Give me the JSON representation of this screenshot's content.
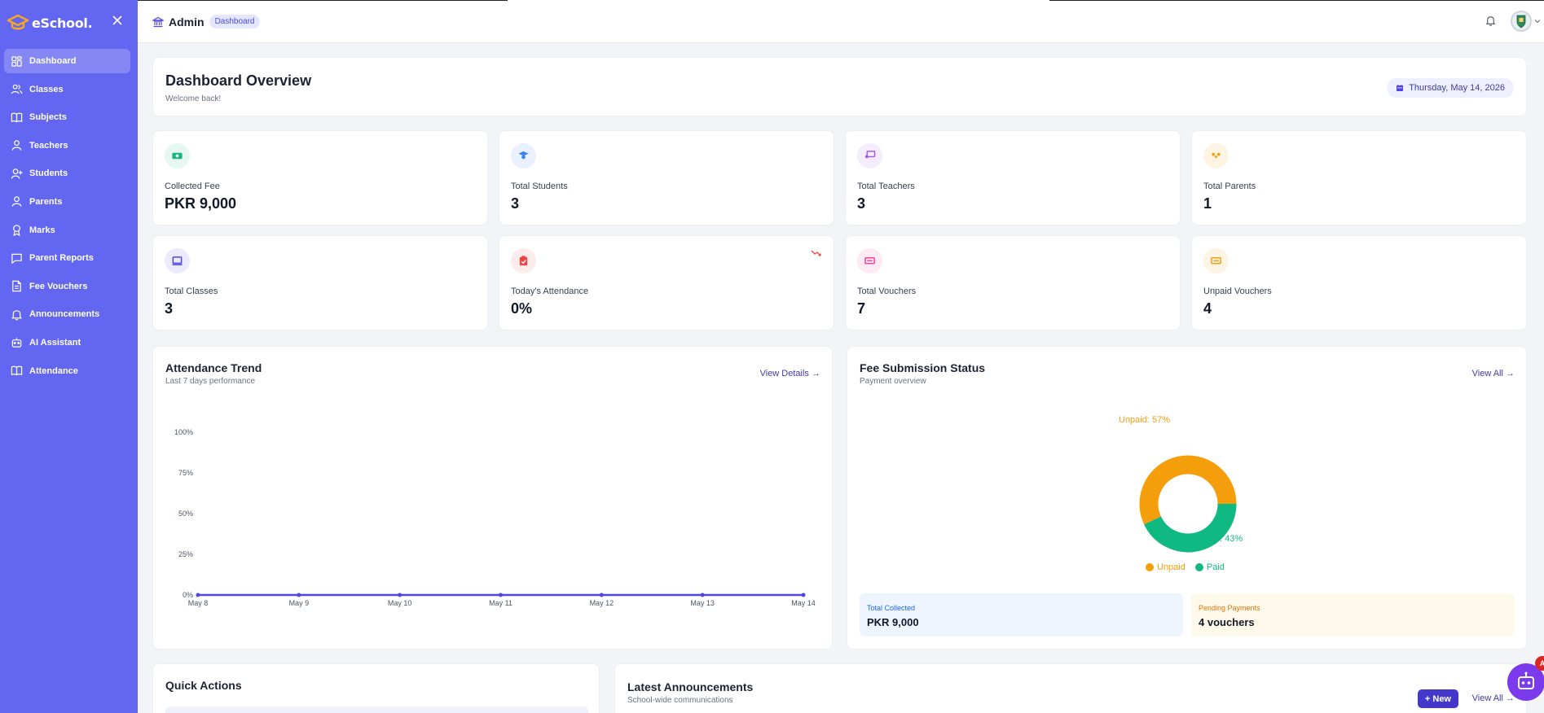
{
  "brand": {
    "name": "eSchool."
  },
  "sidebar": {
    "items": [
      {
        "label": "Dashboard",
        "icon": "dashboard-icon",
        "active": true
      },
      {
        "label": "Classes",
        "icon": "users-icon"
      },
      {
        "label": "Subjects",
        "icon": "book-icon"
      },
      {
        "label": "Teachers",
        "icon": "user-icon"
      },
      {
        "label": "Students",
        "icon": "user-plus-icon"
      },
      {
        "label": "Parents",
        "icon": "user-icon"
      },
      {
        "label": "Marks",
        "icon": "award-icon"
      },
      {
        "label": "Parent Reports",
        "icon": "message-icon"
      },
      {
        "label": "Fee Vouchers",
        "icon": "file-icon"
      },
      {
        "label": "Announcements",
        "icon": "bell-icon"
      },
      {
        "label": "AI Assistant",
        "icon": "robot-icon"
      },
      {
        "label": "Attendance",
        "icon": "book-icon"
      }
    ]
  },
  "topbar": {
    "role": "Admin",
    "breadcrumb": "Dashboard"
  },
  "overview": {
    "title": "Dashboard Overview",
    "subtitle": "Welcome back!",
    "date": "Thursday, May 14, 2026"
  },
  "stats": [
    {
      "label": "Collected Fee",
      "value": "PKR 9,000",
      "icon": "money-icon",
      "color": "#10b981",
      "bg": "#e6f8f1"
    },
    {
      "label": "Total Students",
      "value": "3",
      "icon": "graduate-icon",
      "color": "#3b82f6",
      "bg": "#e8f1fd"
    },
    {
      "label": "Total Teachers",
      "value": "3",
      "icon": "teacher-board-icon",
      "color": "#a855f7",
      "bg": "#f5ecfd"
    },
    {
      "label": "Total Parents",
      "value": "1",
      "icon": "family-icon",
      "color": "#f59e0b",
      "bg": "#fdf4e3"
    },
    {
      "label": "Total Classes",
      "value": "3",
      "icon": "classroom-icon",
      "color": "#4f46e5",
      "bg": "#ebebfd"
    },
    {
      "label": "Today's Attendance",
      "value": "0%",
      "icon": "clipboard-check-icon",
      "color": "#ef4444",
      "bg": "#fdecec",
      "trend": "trend-down-icon"
    },
    {
      "label": "Total Vouchers",
      "value": "7",
      "icon": "ticket-icon",
      "color": "#ec4899",
      "bg": "#fdeaf3"
    },
    {
      "label": "Unpaid Vouchers",
      "value": "4",
      "icon": "ticket-icon",
      "color": "#f59e0b",
      "bg": "#fdf4e3"
    }
  ],
  "attendance_panel": {
    "title": "Attendance Trend",
    "subtitle": "Last 7 days performance",
    "link": "View Details →"
  },
  "fee_panel": {
    "title": "Fee Submission Status",
    "subtitle": "Payment overview",
    "link": "View All →",
    "unpaid_label": "Unpaid: 57%",
    "paid_label": "Paid: 43%",
    "legend_unpaid": "Unpaid",
    "legend_paid": "Paid",
    "total_collected_label": "Total Collected",
    "total_collected_value": "PKR 9,000",
    "pending_label": "Pending Payments",
    "pending_value": "4 vouchers"
  },
  "quick_actions": {
    "title": "Quick Actions"
  },
  "announcements": {
    "title": "Latest Announcements",
    "subtitle": "School-wide communications",
    "new_button": "+ New",
    "link": "View All →"
  },
  "fab_badge": "A",
  "colors": {
    "primary": "#6366f1",
    "unpaid": "#f59e0b",
    "paid": "#10b981",
    "line": "#4f46e5"
  },
  "chart_data": [
    {
      "type": "line",
      "x": [
        "May 8",
        "May 9",
        "May 10",
        "May 11",
        "May 12",
        "May 13",
        "May 14"
      ],
      "series": [
        {
          "values": [
            0,
            0,
            0,
            0,
            0,
            0,
            0
          ]
        }
      ],
      "yticks": [
        "100%",
        "75%",
        "50%",
        "25%",
        "0%"
      ],
      "ylim": [
        0,
        100
      ]
    },
    {
      "type": "pie",
      "categories": [
        "Unpaid",
        "Paid"
      ],
      "values": [
        57,
        43
      ],
      "donut": true,
      "legend": "bottom"
    }
  ]
}
